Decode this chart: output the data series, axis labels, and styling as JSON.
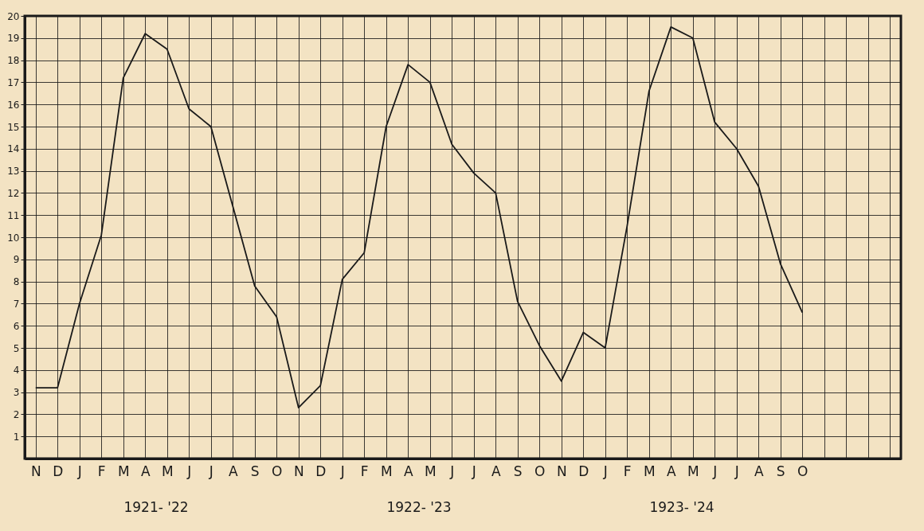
{
  "chart_data": {
    "type": "line",
    "categories": [
      "N",
      "D",
      "J",
      "F",
      "M",
      "A",
      "M",
      "J",
      "J",
      "A",
      "S",
      "O",
      "N",
      "D",
      "J",
      "F",
      "M",
      "A",
      "M",
      "J",
      "J",
      "A",
      "S",
      "O",
      "N",
      "D",
      "J",
      "F",
      "M",
      "A",
      "M",
      "J",
      "J",
      "A",
      "S",
      "O",
      null,
      null,
      null,
      null
    ],
    "series": [
      {
        "color": "#1a1a1a",
        "values": [
          3.2,
          3.2,
          7.0,
          10.1,
          17.2,
          19.2,
          18.5,
          15.8,
          15.0,
          11.4,
          7.8,
          6.4,
          2.3,
          3.3,
          8.1,
          9.3,
          15.0,
          17.8,
          17.0,
          14.2,
          12.9,
          12.0,
          7.1,
          5.1,
          3.5,
          5.7,
          5.0,
          10.5,
          16.6,
          19.5,
          19.0,
          15.2,
          14.0,
          12.3,
          8.8,
          6.6,
          null,
          null,
          null,
          null
        ]
      }
    ],
    "ylim": [
      0,
      20
    ],
    "yticks": [
      1,
      2,
      3,
      4,
      5,
      6,
      7,
      8,
      9,
      10,
      11,
      12,
      13,
      14,
      15,
      16,
      17,
      18,
      19,
      20
    ],
    "grid": true,
    "line_style": "solid",
    "annotations": [
      "1921- '22",
      "1922- '23",
      "1923- '24"
    ]
  }
}
